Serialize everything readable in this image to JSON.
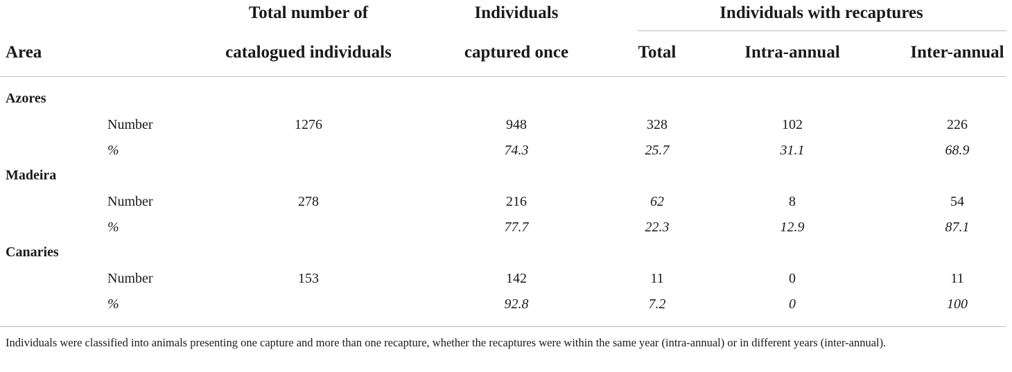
{
  "headers": {
    "area": "Area",
    "total_line1": "Total number of",
    "total_line2": "catalogued individuals",
    "once_line1": "Individuals",
    "once_line2": "captured once",
    "recaptures_group": "Individuals with recaptures",
    "rec_total": "Total",
    "rec_intra": "Intra-annual",
    "rec_inter": "Inter-annual"
  },
  "rows": [
    {
      "area": "Azores",
      "number": {
        "label": "Number",
        "total": "1276",
        "once": "948",
        "rec_total": "328",
        "intra": "102",
        "inter": "226"
      },
      "percent": {
        "label": "%",
        "once": "74.3",
        "rec_total": "25.7",
        "intra": "31.1",
        "inter": "68.9"
      }
    },
    {
      "area": "Madeira",
      "number": {
        "label": "Number",
        "total": "278",
        "once": "216",
        "rec_total": "62",
        "intra": "8",
        "inter": "54"
      },
      "percent": {
        "label": "%",
        "once": "77.7",
        "rec_total": "22.3",
        "intra": "12.9",
        "inter": "87.1"
      }
    },
    {
      "area": "Canaries",
      "number": {
        "label": "Number",
        "total": "153",
        "once": "142",
        "rec_total": "11",
        "intra": "0",
        "inter": "11"
      },
      "percent": {
        "label": "%",
        "once": "92.8",
        "rec_total": "7.2",
        "intra": "0",
        "inter": "100"
      }
    }
  ],
  "footnote": "Individuals were classified into animals presenting one capture and more than one recapture, whether the recaptures were within the same year (intra-annual) or in different years (inter-annual)."
}
